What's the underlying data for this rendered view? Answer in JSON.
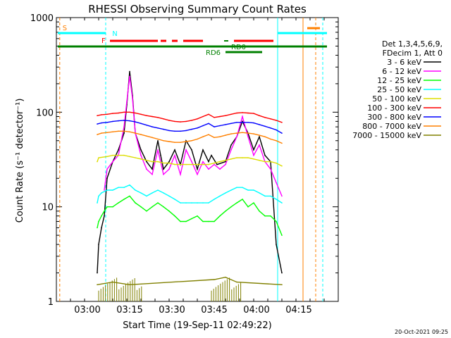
{
  "chart_data": {
    "type": "line",
    "title": "RHESSI Observing Summary Count Rates",
    "xlabel": "Start Time (19-Sep-11 02:49:22)",
    "ylabel": "Count Rate (s⁻¹ detector⁻¹)",
    "y_scale": "log",
    "ylim": [
      1,
      1000
    ],
    "xlim_minutes_after_0249": [
      0,
      100
    ],
    "y_ticks": [
      "1",
      "10",
      "100",
      "1000"
    ],
    "x_ticks": [
      {
        "t": "03:00",
        "m": 11
      },
      {
        "t": "03:15",
        "m": 26
      },
      {
        "t": "03:30",
        "m": 41
      },
      {
        "t": "03:45",
        "m": 56
      },
      {
        "t": "04:00",
        "m": 71
      },
      {
        "t": "04:15",
        "m": 86
      }
    ],
    "legend_header": [
      "Det 1,3,4,5,6,9,",
      "FDecim 1, Att 0"
    ],
    "legend_position": "right",
    "series": [
      {
        "name": "3 - 6 keV",
        "color": "#000000",
        "points": [
          [
            14.5,
            2
          ],
          [
            15,
            4
          ],
          [
            16,
            6
          ],
          [
            17,
            8
          ],
          [
            18,
            20
          ],
          [
            20,
            30
          ],
          [
            22,
            40
          ],
          [
            24,
            60
          ],
          [
            25,
            120
          ],
          [
            26,
            270
          ],
          [
            27,
            150
          ],
          [
            28,
            60
          ],
          [
            30,
            40
          ],
          [
            32,
            30
          ],
          [
            34,
            25
          ],
          [
            36,
            50
          ],
          [
            37,
            35
          ],
          [
            38,
            25
          ],
          [
            40,
            30
          ],
          [
            42,
            40
          ],
          [
            44,
            28
          ],
          [
            46,
            50
          ],
          [
            48,
            40
          ],
          [
            50,
            25
          ],
          [
            52,
            40
          ],
          [
            54,
            30
          ],
          [
            55,
            35
          ],
          [
            57,
            28
          ],
          [
            60,
            30
          ],
          [
            62,
            45
          ],
          [
            64,
            55
          ],
          [
            66,
            80
          ],
          [
            68,
            60
          ],
          [
            70,
            40
          ],
          [
            72,
            55
          ],
          [
            74,
            35
          ],
          [
            76,
            30
          ],
          [
            78,
            4
          ],
          [
            80,
            2
          ]
        ]
      },
      {
        "name": "6 - 12 keV",
        "color": "#ff00ff",
        "points": [
          [
            17,
            15
          ],
          [
            18,
            25
          ],
          [
            20,
            30
          ],
          [
            22,
            35
          ],
          [
            24,
            70
          ],
          [
            25,
            130
          ],
          [
            26,
            240
          ],
          [
            27,
            140
          ],
          [
            28,
            60
          ],
          [
            30,
            35
          ],
          [
            32,
            25
          ],
          [
            34,
            22
          ],
          [
            36,
            40
          ],
          [
            38,
            22
          ],
          [
            40,
            25
          ],
          [
            42,
            35
          ],
          [
            44,
            22
          ],
          [
            46,
            40
          ],
          [
            48,
            30
          ],
          [
            50,
            22
          ],
          [
            52,
            30
          ],
          [
            54,
            25
          ],
          [
            56,
            28
          ],
          [
            58,
            25
          ],
          [
            60,
            28
          ],
          [
            62,
            40
          ],
          [
            64,
            55
          ],
          [
            66,
            90
          ],
          [
            68,
            55
          ],
          [
            70,
            35
          ],
          [
            72,
            45
          ],
          [
            74,
            30
          ],
          [
            76,
            25
          ],
          [
            78,
            18
          ],
          [
            80,
            13
          ]
        ]
      },
      {
        "name": "12 - 25 keV",
        "color": "#00ff00",
        "points": [
          [
            14.5,
            6
          ],
          [
            15,
            7
          ],
          [
            16,
            8
          ],
          [
            17,
            9
          ],
          [
            18,
            10
          ],
          [
            20,
            10
          ],
          [
            22,
            11
          ],
          [
            24,
            12
          ],
          [
            26,
            13
          ],
          [
            28,
            11
          ],
          [
            30,
            10
          ],
          [
            32,
            9
          ],
          [
            34,
            10
          ],
          [
            36,
            11
          ],
          [
            38,
            10
          ],
          [
            40,
            9
          ],
          [
            42,
            8
          ],
          [
            44,
            7
          ],
          [
            46,
            7
          ],
          [
            48,
            7.5
          ],
          [
            50,
            8
          ],
          [
            52,
            7
          ],
          [
            54,
            7
          ],
          [
            56,
            7
          ],
          [
            58,
            8
          ],
          [
            60,
            9
          ],
          [
            62,
            10
          ],
          [
            64,
            11
          ],
          [
            66,
            12
          ],
          [
            68,
            10
          ],
          [
            70,
            11
          ],
          [
            72,
            9
          ],
          [
            74,
            8
          ],
          [
            76,
            8
          ],
          [
            78,
            7
          ],
          [
            80,
            5
          ]
        ]
      },
      {
        "name": "25 - 50 keV",
        "color": "#00ffff",
        "points": [
          [
            14.5,
            11
          ],
          [
            15,
            13
          ],
          [
            16,
            14
          ],
          [
            18,
            15
          ],
          [
            20,
            15
          ],
          [
            22,
            16
          ],
          [
            24,
            16
          ],
          [
            26,
            17
          ],
          [
            28,
            15
          ],
          [
            30,
            14
          ],
          [
            32,
            13
          ],
          [
            34,
            14
          ],
          [
            36,
            15
          ],
          [
            38,
            14
          ],
          [
            40,
            13
          ],
          [
            42,
            12
          ],
          [
            44,
            11
          ],
          [
            46,
            11
          ],
          [
            48,
            11
          ],
          [
            50,
            11
          ],
          [
            52,
            11
          ],
          [
            54,
            11
          ],
          [
            56,
            12
          ],
          [
            58,
            13
          ],
          [
            60,
            14
          ],
          [
            62,
            15
          ],
          [
            64,
            16
          ],
          [
            66,
            16
          ],
          [
            68,
            15
          ],
          [
            70,
            15
          ],
          [
            72,
            14
          ],
          [
            74,
            13
          ],
          [
            76,
            13
          ],
          [
            78,
            12
          ],
          [
            80,
            11
          ]
        ]
      },
      {
        "name": "50 - 100 keV",
        "color": "#dddd00",
        "points": [
          [
            14.5,
            30
          ],
          [
            15,
            33
          ],
          [
            18,
            34
          ],
          [
            20,
            35
          ],
          [
            22,
            35
          ],
          [
            24,
            35
          ],
          [
            26,
            34
          ],
          [
            28,
            33
          ],
          [
            30,
            32
          ],
          [
            32,
            31
          ],
          [
            34,
            30
          ],
          [
            36,
            30
          ],
          [
            38,
            29
          ],
          [
            40,
            29
          ],
          [
            42,
            28
          ],
          [
            44,
            28
          ],
          [
            46,
            28
          ],
          [
            48,
            28
          ],
          [
            50,
            28
          ],
          [
            52,
            28
          ],
          [
            54,
            28
          ],
          [
            56,
            29
          ],
          [
            58,
            30
          ],
          [
            60,
            31
          ],
          [
            62,
            32
          ],
          [
            64,
            33
          ],
          [
            66,
            33
          ],
          [
            68,
            33
          ],
          [
            70,
            32
          ],
          [
            72,
            31
          ],
          [
            74,
            30
          ],
          [
            76,
            30
          ],
          [
            78,
            29
          ],
          [
            80,
            27
          ]
        ]
      },
      {
        "name": "100 - 300 keV",
        "color": "#ff0000",
        "points": [
          [
            14.5,
            92
          ],
          [
            16,
            94
          ],
          [
            18,
            95
          ],
          [
            20,
            97
          ],
          [
            22,
            98
          ],
          [
            24,
            100
          ],
          [
            26,
            100
          ],
          [
            28,
            98
          ],
          [
            30,
            95
          ],
          [
            32,
            92
          ],
          [
            34,
            90
          ],
          [
            36,
            88
          ],
          [
            38,
            85
          ],
          [
            40,
            82
          ],
          [
            42,
            80
          ],
          [
            44,
            79
          ],
          [
            46,
            80
          ],
          [
            48,
            82
          ],
          [
            50,
            85
          ],
          [
            52,
            90
          ],
          [
            54,
            95
          ],
          [
            56,
            88
          ],
          [
            58,
            90
          ],
          [
            60,
            92
          ],
          [
            62,
            95
          ],
          [
            64,
            98
          ],
          [
            66,
            99
          ],
          [
            68,
            98
          ],
          [
            70,
            97
          ],
          [
            72,
            92
          ],
          [
            74,
            88
          ],
          [
            76,
            85
          ],
          [
            78,
            82
          ],
          [
            80,
            78
          ]
        ]
      },
      {
        "name": "300 - 800 keV",
        "color": "#0000ff",
        "points": [
          [
            14.5,
            75
          ],
          [
            16,
            77
          ],
          [
            18,
            78
          ],
          [
            20,
            80
          ],
          [
            22,
            81
          ],
          [
            24,
            82
          ],
          [
            26,
            81
          ],
          [
            28,
            79
          ],
          [
            30,
            76
          ],
          [
            32,
            73
          ],
          [
            34,
            70
          ],
          [
            36,
            68
          ],
          [
            38,
            66
          ],
          [
            40,
            64
          ],
          [
            42,
            63
          ],
          [
            44,
            63
          ],
          [
            46,
            64
          ],
          [
            48,
            66
          ],
          [
            50,
            68
          ],
          [
            52,
            72
          ],
          [
            54,
            76
          ],
          [
            56,
            70
          ],
          [
            58,
            72
          ],
          [
            60,
            74
          ],
          [
            62,
            76
          ],
          [
            64,
            78
          ],
          [
            66,
            78
          ],
          [
            68,
            78
          ],
          [
            70,
            77
          ],
          [
            72,
            74
          ],
          [
            74,
            71
          ],
          [
            76,
            68
          ],
          [
            78,
            65
          ],
          [
            80,
            60
          ]
        ]
      },
      {
        "name": "800 - 7000 keV",
        "color": "#ff8000",
        "points": [
          [
            14.5,
            58
          ],
          [
            16,
            60
          ],
          [
            18,
            61
          ],
          [
            20,
            62
          ],
          [
            22,
            63
          ],
          [
            24,
            63
          ],
          [
            26,
            62
          ],
          [
            28,
            60
          ],
          [
            30,
            58
          ],
          [
            32,
            56
          ],
          [
            34,
            54
          ],
          [
            36,
            52
          ],
          [
            38,
            50
          ],
          [
            40,
            49
          ],
          [
            42,
            48
          ],
          [
            44,
            48
          ],
          [
            46,
            49
          ],
          [
            48,
            50
          ],
          [
            50,
            52
          ],
          [
            52,
            55
          ],
          [
            54,
            58
          ],
          [
            56,
            54
          ],
          [
            58,
            55
          ],
          [
            60,
            57
          ],
          [
            62,
            59
          ],
          [
            64,
            60
          ],
          [
            66,
            61
          ],
          [
            68,
            60
          ],
          [
            70,
            59
          ],
          [
            72,
            57
          ],
          [
            74,
            55
          ],
          [
            76,
            52
          ],
          [
            78,
            50
          ],
          [
            80,
            47
          ]
        ]
      },
      {
        "name": "7000 - 15000 keV",
        "color": "#808000",
        "points": [
          [
            14.5,
            1.5
          ],
          [
            20,
            1.6
          ],
          [
            26,
            1.5
          ],
          [
            56,
            1.7
          ],
          [
            60,
            1.8
          ],
          [
            64,
            1.6
          ],
          [
            80,
            1.5
          ]
        ]
      }
    ],
    "annotations": [
      {
        "text": "S",
        "color": "#ff8000"
      },
      {
        "text": "N",
        "color": "#00ffff"
      },
      {
        "text": "F",
        "color": "#ff0000"
      },
      {
        "text": "RD0",
        "color": "#008000"
      },
      {
        "text": "RD6",
        "color": "#008000"
      }
    ],
    "footer_timestamp": "20-Oct-2021 09:25"
  }
}
